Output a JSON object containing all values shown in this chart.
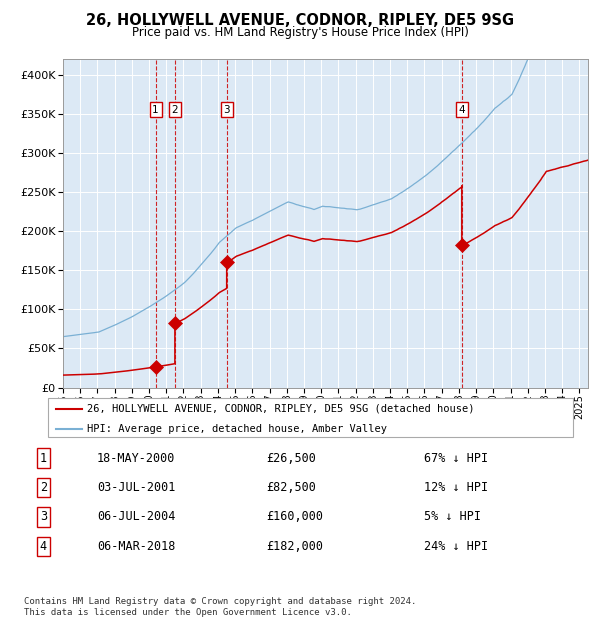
{
  "title": "26, HOLLYWELL AVENUE, CODNOR, RIPLEY, DE5 9SG",
  "subtitle": "Price paid vs. HM Land Registry's House Price Index (HPI)",
  "ylim": [
    0,
    420000
  ],
  "xlim_start": 1995.0,
  "xlim_end": 2025.5,
  "background_color": "#dce9f5",
  "sale_color": "#cc0000",
  "hpi_color": "#7ab0d4",
  "grid_color": "#ffffff",
  "sales": [
    {
      "date": 2000.38,
      "price": 26500,
      "label": "1"
    },
    {
      "date": 2001.5,
      "price": 82500,
      "label": "2"
    },
    {
      "date": 2004.51,
      "price": 160000,
      "label": "3"
    },
    {
      "date": 2018.17,
      "price": 182000,
      "label": "4"
    }
  ],
  "footer": "Contains HM Land Registry data © Crown copyright and database right 2024.\nThis data is licensed under the Open Government Licence v3.0.",
  "legend_property_label": "26, HOLLYWELL AVENUE, CODNOR, RIPLEY, DE5 9SG (detached house)",
  "legend_hpi_label": "HPI: Average price, detached house, Amber Valley",
  "table_data": [
    [
      "1",
      "18-MAY-2000",
      "£26,500",
      "67% ↓ HPI"
    ],
    [
      "2",
      "03-JUL-2001",
      "£82,500",
      "12% ↓ HPI"
    ],
    [
      "3",
      "06-JUL-2004",
      "£160,000",
      "5% ↓ HPI"
    ],
    [
      "4",
      "06-MAR-2018",
      "£182,000",
      "24% ↓ HPI"
    ]
  ]
}
